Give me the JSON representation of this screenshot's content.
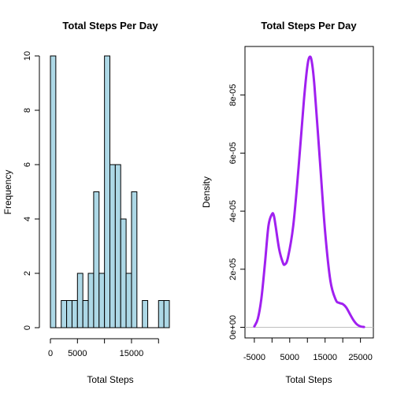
{
  "chart_data": [
    {
      "type": "bar",
      "title": "Total Steps Per Day",
      "xlabel": "Total Steps",
      "ylabel": "Frequency",
      "bin_width": 1000,
      "bins": [
        {
          "x0": 0,
          "x1": 1000,
          "count": 10
        },
        {
          "x0": 1000,
          "x1": 2000,
          "count": 0
        },
        {
          "x0": 2000,
          "x1": 3000,
          "count": 1
        },
        {
          "x0": 3000,
          "x1": 4000,
          "count": 1
        },
        {
          "x0": 4000,
          "x1": 5000,
          "count": 1
        },
        {
          "x0": 5000,
          "x1": 6000,
          "count": 2
        },
        {
          "x0": 6000,
          "x1": 7000,
          "count": 1
        },
        {
          "x0": 7000,
          "x1": 8000,
          "count": 2
        },
        {
          "x0": 8000,
          "x1": 9000,
          "count": 5
        },
        {
          "x0": 9000,
          "x1": 10000,
          "count": 2
        },
        {
          "x0": 10000,
          "x1": 11000,
          "count": 10
        },
        {
          "x0": 11000,
          "x1": 12000,
          "count": 6
        },
        {
          "x0": 12000,
          "x1": 13000,
          "count": 6
        },
        {
          "x0": 13000,
          "x1": 14000,
          "count": 4
        },
        {
          "x0": 14000,
          "x1": 15000,
          "count": 2
        },
        {
          "x0": 15000,
          "x1": 16000,
          "count": 5
        },
        {
          "x0": 16000,
          "x1": 17000,
          "count": 0
        },
        {
          "x0": 17000,
          "x1": 18000,
          "count": 1
        },
        {
          "x0": 18000,
          "x1": 19000,
          "count": 0
        },
        {
          "x0": 19000,
          "x1": 20000,
          "count": 0
        },
        {
          "x0": 20000,
          "x1": 21000,
          "count": 1
        },
        {
          "x0": 21000,
          "x1": 22000,
          "count": 1
        }
      ],
      "xlim": [
        0,
        22000
      ],
      "ylim": [
        0,
        10
      ],
      "x_ticks": [
        0,
        5000,
        15000
      ],
      "x_tick_labels": [
        "0",
        "5000",
        "15000"
      ],
      "x_axis_extent": [
        0,
        20000
      ],
      "y_ticks": [
        0,
        2,
        4,
        6,
        8,
        10
      ],
      "y_tick_labels": [
        "0",
        "2",
        "4",
        "6",
        "8",
        "10"
      ],
      "bar_color": "#add8e6",
      "grid": false
    },
    {
      "type": "line",
      "title": "Total Steps Per Day",
      "xlabel": "Total Steps",
      "ylabel": "Density",
      "x": [
        -5000,
        -4000,
        -3000,
        -2000,
        -1000,
        0,
        500,
        1000,
        2000,
        3000,
        3600,
        4500,
        6000,
        7500,
        9000,
        10000,
        10700,
        11300,
        12000,
        13500,
        15000,
        16500,
        18000,
        19000,
        20000,
        21000,
        22000,
        23000,
        24000,
        25000,
        26000
      ],
      "y": [
        3e-07,
        3e-06,
        1e-05,
        2.2e-05,
        3.5e-05,
        3.9e-05,
        3.85e-05,
        3.5e-05,
        2.7e-05,
        2.25e-05,
        2.16e-05,
        2.4e-05,
        3.5e-05,
        5.5e-05,
        7.8e-05,
        9e-05,
        9.32e-05,
        9.1e-05,
        8.3e-05,
        5.8e-05,
        3.3e-05,
        1.6e-05,
        9.5e-06,
        8.4e-06,
        8e-06,
        6.8e-06,
        4.6e-06,
        2.5e-06,
        1e-06,
        3e-07,
        1e-07
      ],
      "xlim": [
        -6200,
        27200
      ],
      "ylim": [
        0,
        9.32e-05
      ],
      "x_ticks": [
        -5000,
        5000,
        15000,
        25000
      ],
      "x_tick_labels": [
        "-5000",
        "5000",
        "15000",
        "25000"
      ],
      "y_ticks": [
        0,
        2e-05,
        4e-05,
        6e-05,
        8e-05
      ],
      "y_tick_labels": [
        "0e+00",
        "2e-05",
        "4e-05",
        "6e-05",
        "8e-05"
      ],
      "line_color": "#a020f0",
      "baseline_color": "#bebebe",
      "grid": false
    }
  ]
}
